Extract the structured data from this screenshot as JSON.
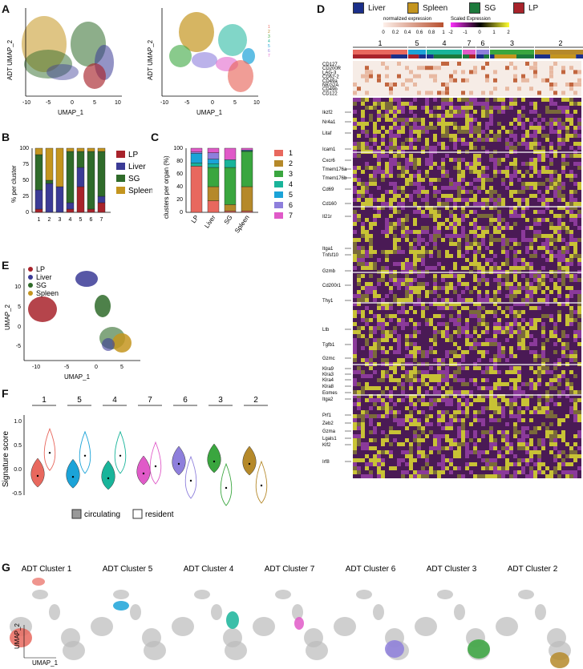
{
  "panels": {
    "A": "A",
    "B": "B",
    "C": "C",
    "D": "D",
    "E": "E",
    "F": "F",
    "G": "G"
  },
  "colors": {
    "LP": "#a8232b",
    "Liver": "#3b3b96",
    "SG": "#2f6b2a",
    "Spleen": "#c4951f",
    "c1": "#e8685e",
    "c2": "#b5892a",
    "c3": "#3aa63f",
    "c4": "#19b49a",
    "c5": "#1ba3d8",
    "c6": "#8e7fdc",
    "c7": "#e05ac8"
  },
  "panelA": {
    "ylabel": "ADT UMAP_2",
    "xlabel": "UMAP_1",
    "ylabel2": "ADT UMAP_2",
    "xlabel2": "UMAP_1",
    "xticks": [
      "-10",
      "-5",
      "0",
      "5",
      "10"
    ],
    "xticks2": [
      "-10",
      "-5",
      "0",
      "5",
      "10"
    ],
    "legend": [
      "1",
      "2",
      "3",
      "4",
      "5",
      "6",
      "7"
    ]
  },
  "chart_data": [
    {
      "id": "B",
      "type": "bar",
      "stacked": true,
      "categories": [
        "1",
        "2",
        "3",
        "4",
        "5",
        "6",
        "7"
      ],
      "series": [
        {
          "name": "LP",
          "values": [
            5,
            0,
            0,
            5,
            40,
            5,
            15
          ]
        },
        {
          "name": "Liver",
          "values": [
            30,
            45,
            40,
            10,
            30,
            0,
            10
          ]
        },
        {
          "name": "SG",
          "values": [
            55,
            5,
            0,
            80,
            25,
            90,
            70
          ]
        },
        {
          "name": "Spleen",
          "values": [
            10,
            50,
            60,
            5,
            5,
            5,
            5
          ]
        }
      ],
      "ylabel": "% per cluster",
      "yticks": [
        "0",
        "25",
        "50",
        "75",
        "100"
      ],
      "ylim": [
        0,
        100
      ],
      "legend": [
        "LP",
        "Liver",
        "SG",
        "Spleen"
      ]
    },
    {
      "id": "C",
      "type": "bar",
      "stacked": true,
      "categories": [
        "LP",
        "Liver",
        "SG",
        "Spleen"
      ],
      "series": [
        {
          "name": "1",
          "values": [
            72,
            18,
            2,
            2
          ]
        },
        {
          "name": "2",
          "values": [
            0,
            22,
            10,
            38
          ]
        },
        {
          "name": "3",
          "values": [
            0,
            30,
            58,
            55
          ]
        },
        {
          "name": "4",
          "values": [
            5,
            6,
            12,
            1
          ]
        },
        {
          "name": "5",
          "values": [
            15,
            7,
            0,
            1
          ]
        },
        {
          "name": "6",
          "values": [
            2,
            10,
            0,
            0
          ]
        },
        {
          "name": "7",
          "values": [
            6,
            7,
            18,
            3
          ]
        }
      ],
      "ylabel": "clusters per organ (%)",
      "yticks": [
        "0",
        "20",
        "40",
        "60",
        "80",
        "100"
      ],
      "ylim": [
        0,
        100
      ],
      "legend": [
        "1",
        "2",
        "3",
        "4",
        "5",
        "6",
        "7"
      ]
    },
    {
      "id": "F",
      "type": "violin",
      "groups": [
        "1",
        "5",
        "4",
        "7",
        "6",
        "3",
        "2"
      ],
      "circulating_median": [
        -0.1,
        -0.12,
        -0.15,
        -0.05,
        0.15,
        0.2,
        0.15
      ],
      "resident_median": [
        0.38,
        0.32,
        0.32,
        0.1,
        -0.2,
        -0.35,
        -0.3
      ],
      "ylabel": "Signature score",
      "yticks": [
        "-0.5",
        "0.0",
        "0.5",
        "1.0"
      ],
      "ylim": [
        -0.55,
        1.1
      ],
      "legend": [
        "circulating",
        "resident"
      ]
    }
  ],
  "panelD": {
    "legend": [
      "Liver",
      "Spleen",
      "SG",
      "LP"
    ],
    "norm_label": "normalized expression",
    "norm_ticks": [
      "0",
      "0.2",
      "0.4",
      "0.6",
      "0.8",
      "1"
    ],
    "scaled_label": "Scaled Expression",
    "scaled_ticks": [
      "-2",
      "-1",
      "0",
      "1",
      "2"
    ],
    "clusters": [
      "1",
      "5",
      "4",
      "7",
      "6",
      "3",
      "2"
    ],
    "adt": [
      "CD127",
      "CD200R",
      "LAG-3",
      "CD62-2",
      "CD49a",
      "NKG2A",
      "CD49b",
      "CD122"
    ],
    "genes": [
      "Ikzf2",
      "Nr4a1",
      "Litaf",
      "Icam1",
      "Cxcr6",
      "Tmem176a",
      "Tmem176b",
      "Cd69",
      "Cd160",
      "Il21r",
      "Itga1",
      "Tnfsf10",
      "Gzmb",
      "Cd200r1",
      "Thy1",
      "Ltb",
      "Tgfb1",
      "Gzmc",
      "Klra9",
      "Klra3",
      "Klra4",
      "Klra8",
      "Eomes",
      "Itga2",
      "Prf1",
      "Zeb2",
      "Gzma",
      "Lgals1",
      "Klf2",
      "Irf8"
    ]
  },
  "panelE": {
    "legend": [
      "LP",
      "Liver",
      "SG",
      "Spleen"
    ],
    "xlabel": "UMAP_1",
    "ylabel": "UMAP_2",
    "xticks": [
      "-10",
      "-5",
      "0",
      "5"
    ],
    "yticks": [
      "10",
      "5",
      "0",
      "-5"
    ]
  },
  "panelG": {
    "titles": [
      "ADT Cluster 1",
      "ADT Cluster 5",
      "ADT Cluster 4",
      "ADT Cluster 7",
      "ADT Cluster 6",
      "ADT Cluster 3",
      "ADT Cluster 2"
    ],
    "xlabel": "UMAP_1",
    "ylabel": "UMAP_2"
  }
}
